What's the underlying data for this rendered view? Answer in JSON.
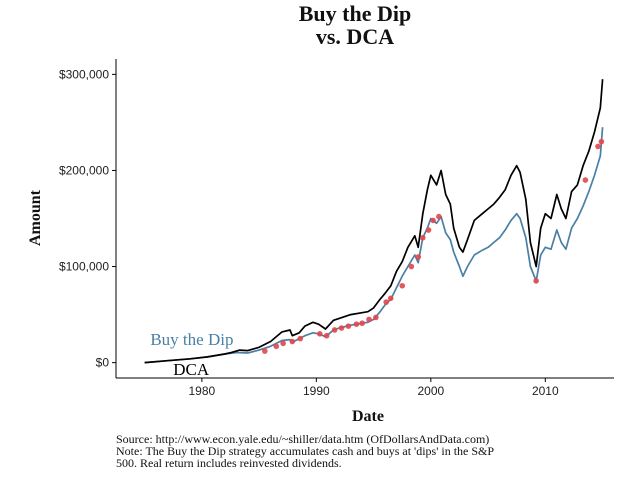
{
  "chart_data": {
    "type": "line",
    "title": [
      "Buy the Dip",
      "vs. DCA"
    ],
    "xlabel": "Date",
    "ylabel": "Amount",
    "xlim": [
      1972.5,
      2016
    ],
    "ylim": [
      -16000,
      316000
    ],
    "x_ticks": [
      1980,
      1990,
      2000,
      2010
    ],
    "x_tick_labels": [
      "1980",
      "1990",
      "2000",
      "2010"
    ],
    "y_ticks": [
      0,
      100000,
      200000,
      300000
    ],
    "y_tick_labels": [
      "$0",
      "$100,000",
      "$200,000",
      "$300,000"
    ],
    "grid": false,
    "series": [
      {
        "name": "DCA",
        "color": "#000000",
        "x": [
          1975,
          1977,
          1979,
          1980.5,
          1982,
          1982.6,
          1983.3,
          1984,
          1985,
          1986,
          1987,
          1987.7,
          1987.9,
          1988.5,
          1989,
          1989.7,
          1990.2,
          1990.8,
          1991.5,
          1992,
          1993,
          1994,
          1994.5,
          1995,
          1995.5,
          1996,
          1996.5,
          1997,
          1997.5,
          1998,
          1998.6,
          1998.9,
          1999.3,
          1999.7,
          2000,
          2000.5,
          2000.9,
          2001.3,
          2001.7,
          2002,
          2002.5,
          2002.8,
          2003.2,
          2003.8,
          2004.5,
          2005,
          2005.5,
          2006,
          2006.5,
          2007,
          2007.5,
          2007.8,
          2008.3,
          2008.7,
          2009.2,
          2009.6,
          2010,
          2010.5,
          2011,
          2011.4,
          2011.8,
          2012.3,
          2012.8,
          2013.3,
          2013.8,
          2014.3,
          2014.8,
          2015
        ],
        "y": [
          0,
          2000,
          4000,
          6000,
          9000,
          10500,
          13000,
          12500,
          16000,
          22000,
          32000,
          34000,
          28000,
          31000,
          38000,
          42000,
          40000,
          35000,
          44000,
          46000,
          50000,
          52000,
          53000,
          57000,
          65000,
          72000,
          80000,
          95000,
          105000,
          120000,
          132000,
          120000,
          155000,
          180000,
          195000,
          185000,
          200000,
          175000,
          165000,
          140000,
          120000,
          115000,
          128000,
          148000,
          155000,
          160000,
          165000,
          172000,
          180000,
          195000,
          205000,
          198000,
          170000,
          125000,
          100000,
          140000,
          155000,
          150000,
          175000,
          160000,
          150000,
          178000,
          185000,
          205000,
          220000,
          240000,
          265000,
          295000
        ],
        "label": "DCA",
        "label_color": "#000000"
      },
      {
        "name": "Buy the Dip",
        "color": "#4a7fa6",
        "x": [
          1975,
          1977,
          1979,
          1980.5,
          1982,
          1983,
          1984,
          1985,
          1986,
          1987,
          1987.7,
          1987.9,
          1988.5,
          1989,
          1989.7,
          1990.2,
          1990.8,
          1991.5,
          1992,
          1993,
          1994,
          1994.5,
          1995,
          1995.5,
          1996,
          1996.5,
          1997,
          1997.5,
          1998,
          1998.6,
          1998.9,
          1999.3,
          1999.7,
          2000,
          2000.5,
          2000.9,
          2001.3,
          2001.7,
          2002,
          2002.5,
          2002.8,
          2003.2,
          2003.8,
          2004.5,
          2005,
          2005.5,
          2006,
          2006.5,
          2007,
          2007.5,
          2007.8,
          2008.3,
          2008.7,
          2009.2,
          2009.6,
          2010,
          2010.5,
          2011,
          2011.4,
          2011.8,
          2012.3,
          2012.8,
          2013.3,
          2013.8,
          2014.3,
          2014.8,
          2015
        ],
        "y": [
          0,
          2000,
          4000,
          6000,
          9000,
          10500,
          10000,
          13000,
          17000,
          23000,
          24000,
          21000,
          25000,
          28000,
          31000,
          30000,
          27000,
          34000,
          36000,
          39000,
          41000,
          42000,
          45000,
          52000,
          60000,
          66000,
          78000,
          90000,
          100000,
          112000,
          104000,
          130000,
          140000,
          150000,
          145000,
          152000,
          135000,
          128000,
          115000,
          100000,
          90000,
          100000,
          112000,
          117000,
          120000,
          125000,
          130000,
          138000,
          148000,
          155000,
          150000,
          130000,
          100000,
          85000,
          112000,
          120000,
          118000,
          138000,
          125000,
          118000,
          140000,
          150000,
          163000,
          178000,
          195000,
          215000,
          245000
        ],
        "label": "Buy the Dip",
        "label_color": "#4a7fa6"
      }
    ],
    "dip_buys": {
      "name": "dips",
      "color": "#e0474c",
      "x": [
        1985.5,
        1986.5,
        1987.1,
        1987.9,
        1988.6,
        1990.3,
        1990.9,
        1991.6,
        1992.2,
        1992.8,
        1993.5,
        1994.0,
        1994.6,
        1995.2,
        1996.1,
        1996.5,
        1997.5,
        1998.3,
        1998.9,
        1999.3,
        1999.8,
        2000.2,
        2000.7,
        2009.2,
        2013.5,
        2014.6,
        2014.9
      ],
      "y": [
        12000,
        17000,
        20000,
        22000,
        25000,
        30000,
        28000,
        34000,
        36000,
        38000,
        40000,
        41000,
        45000,
        47000,
        63000,
        67000,
        80000,
        100000,
        110000,
        130000,
        138000,
        148000,
        152000,
        85000,
        190000,
        225000,
        230000
      ]
    }
  },
  "footnote": {
    "source": "Source:  http://www.econ.yale.edu/~shiller/data.htm (OfDollarsAndData.com)",
    "note_line1": "Note: The Buy the Dip strategy accumulates cash and buys at 'dips' in the S&P",
    "note_line2": "500. Real return includes reinvested dividends."
  }
}
